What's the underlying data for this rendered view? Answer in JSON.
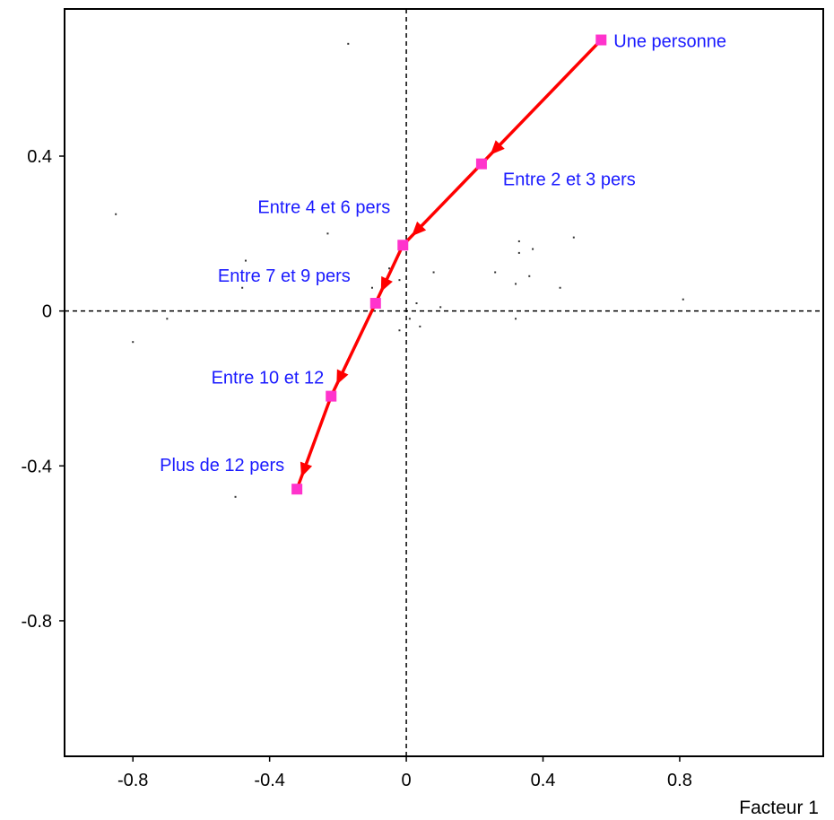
{
  "chart_data": {
    "type": "scatter",
    "title": "",
    "xlabel": "Facteur 1",
    "ylabel": "",
    "xlim": [
      -1.0,
      1.22
    ],
    "ylim": [
      -1.15,
      0.78
    ],
    "x_ticks": [
      {
        "value": -0.8,
        "label": "-0.8"
      },
      {
        "value": -0.4,
        "label": "-0.4"
      },
      {
        "value": 0,
        "label": "0"
      },
      {
        "value": 0.4,
        "label": "0.4"
      },
      {
        "value": 0.8,
        "label": "0.8"
      }
    ],
    "y_ticks": [
      {
        "value": 0.4,
        "label": "0.4"
      },
      {
        "value": 0,
        "label": "0"
      },
      {
        "value": -0.4,
        "label": "-0.4"
      },
      {
        "value": -0.8,
        "label": "-0.8"
      }
    ],
    "trajectory": {
      "color": "#ff0000",
      "marker_color": "#ff33cc",
      "label_color": "#1a1aff",
      "points": [
        {
          "label": "Une personne",
          "x": 0.57,
          "y": 0.7
        },
        {
          "label": "Entre 2 et 3 pers",
          "x": 0.22,
          "y": 0.38
        },
        {
          "label": "Entre 4 et 6 pers",
          "x": -0.01,
          "y": 0.17
        },
        {
          "label": "Entre 7 et 9 pers",
          "x": -0.09,
          "y": 0.02
        },
        {
          "label": "Entre 10 et 12",
          "x": -0.22,
          "y": -0.22
        },
        {
          "label": "Plus de 12 pers",
          "x": -0.32,
          "y": -0.46
        }
      ]
    },
    "background_points": [
      {
        "x": -0.17,
        "y": 0.69
      },
      {
        "x": -0.85,
        "y": 0.25
      },
      {
        "x": -0.23,
        "y": 0.2
      },
      {
        "x": -0.47,
        "y": 0.13
      },
      {
        "x": -0.48,
        "y": 0.06
      },
      {
        "x": -0.74,
        "y": 0.0
      },
      {
        "x": -0.7,
        "y": -0.02
      },
      {
        "x": -0.8,
        "y": -0.08
      },
      {
        "x": -0.48,
        "y": 0.0
      },
      {
        "x": -0.05,
        "y": 0.11
      },
      {
        "x": -0.02,
        "y": 0.08
      },
      {
        "x": -0.1,
        "y": 0.06
      },
      {
        "x": 0.08,
        "y": 0.1
      },
      {
        "x": 0.03,
        "y": 0.02
      },
      {
        "x": 0.1,
        "y": 0.01
      },
      {
        "x": 0.01,
        "y": -0.02
      },
      {
        "x": -0.02,
        "y": -0.05
      },
      {
        "x": 0.04,
        "y": -0.04
      },
      {
        "x": 0.26,
        "y": 0.1
      },
      {
        "x": 0.32,
        "y": 0.07
      },
      {
        "x": 0.33,
        "y": 0.15
      },
      {
        "x": 0.33,
        "y": 0.18
      },
      {
        "x": 0.37,
        "y": 0.16
      },
      {
        "x": 0.36,
        "y": 0.09
      },
      {
        "x": 0.45,
        "y": 0.06
      },
      {
        "x": 0.49,
        "y": 0.19
      },
      {
        "x": 0.32,
        "y": -0.02
      },
      {
        "x": 0.81,
        "y": 0.03
      },
      {
        "x": -0.5,
        "y": -0.48
      },
      {
        "x": 0.0,
        "y": -0.24
      }
    ]
  }
}
